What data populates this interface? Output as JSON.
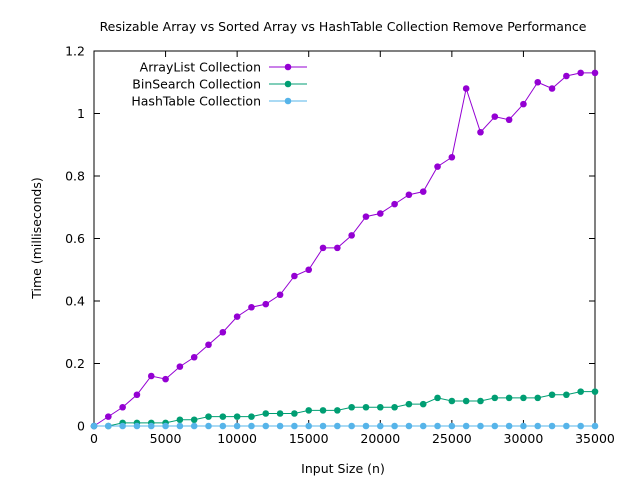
{
  "chart_data": {
    "type": "line",
    "title": "Resizable Array vs Sorted Array vs HashTable Collection Remove Performance",
    "xlabel": "Input Size (n)",
    "ylabel": "Time (milliseconds)",
    "xlim": [
      0,
      35000
    ],
    "ylim": [
      0,
      1.2
    ],
    "xticks": [
      0,
      5000,
      10000,
      15000,
      20000,
      25000,
      30000,
      35000
    ],
    "yticks": [
      0,
      0.2,
      0.4,
      0.6,
      0.8,
      1,
      1.2
    ],
    "grid": false,
    "legend_position": "top-left",
    "x": [
      0,
      1000,
      2000,
      3000,
      4000,
      5000,
      6000,
      7000,
      8000,
      9000,
      10000,
      11000,
      12000,
      13000,
      14000,
      15000,
      16000,
      17000,
      18000,
      19000,
      20000,
      21000,
      22000,
      23000,
      24000,
      25000,
      26000,
      27000,
      28000,
      29000,
      30000,
      31000,
      32000,
      33000,
      34000,
      35000
    ],
    "series": [
      {
        "name": "ArrayList Collection",
        "color": "#9400d3",
        "values": [
          0,
          0.03,
          0.06,
          0.1,
          0.16,
          0.15,
          0.19,
          0.22,
          0.26,
          0.3,
          0.35,
          0.38,
          0.39,
          0.42,
          0.48,
          0.5,
          0.57,
          0.57,
          0.61,
          0.67,
          0.68,
          0.71,
          0.74,
          0.75,
          0.83,
          0.86,
          1.08,
          0.94,
          0.99,
          0.98,
          1.03,
          1.1,
          1.08,
          1.12,
          1.13,
          1.13
        ]
      },
      {
        "name": "BinSearch Collection",
        "color": "#009e73",
        "values": [
          0,
          0,
          0.01,
          0.01,
          0.01,
          0.01,
          0.02,
          0.02,
          0.03,
          0.03,
          0.03,
          0.03,
          0.04,
          0.04,
          0.04,
          0.05,
          0.05,
          0.05,
          0.06,
          0.06,
          0.06,
          0.06,
          0.07,
          0.07,
          0.09,
          0.08,
          0.08,
          0.08,
          0.09,
          0.09,
          0.09,
          0.09,
          0.1,
          0.1,
          0.11,
          0.11
        ]
      },
      {
        "name": "HashTable Collection",
        "color": "#56b4e9",
        "values": [
          0,
          0,
          0,
          0,
          0,
          0,
          0,
          0,
          0,
          0,
          0,
          0,
          0,
          0,
          0,
          0,
          0,
          0,
          0,
          0,
          0,
          0,
          0,
          0,
          0,
          0,
          0,
          0,
          0,
          0,
          0,
          0,
          0,
          0,
          0,
          0
        ]
      }
    ]
  }
}
